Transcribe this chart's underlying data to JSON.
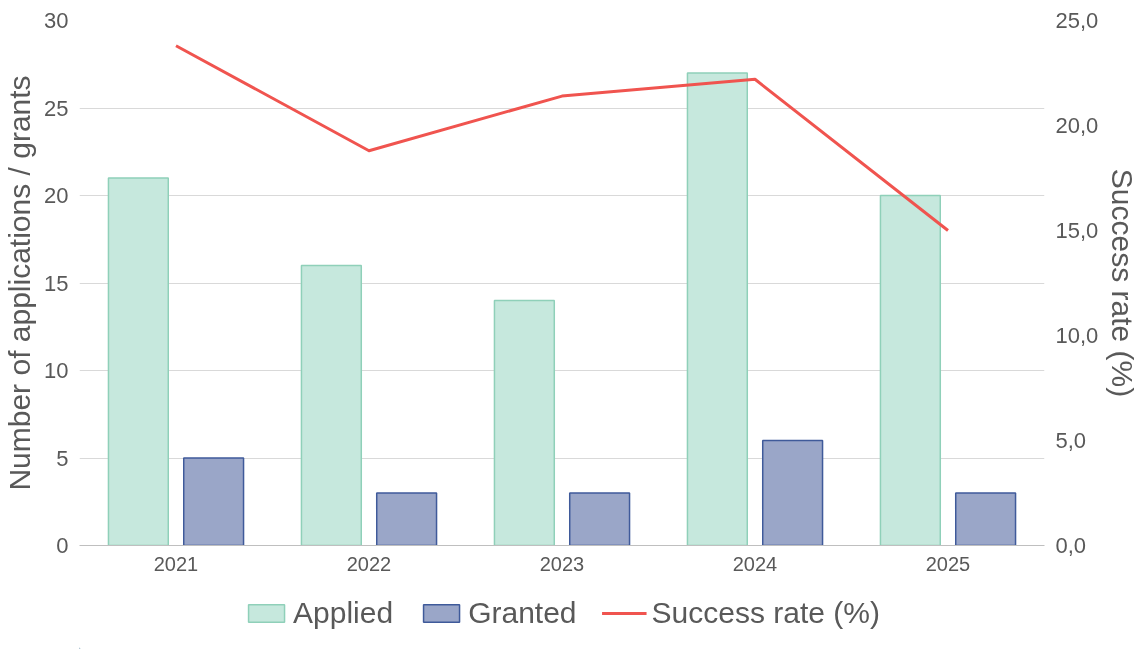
{
  "chart_data": {
    "type": "bar",
    "categories": [
      "2021",
      "2022",
      "2023",
      "2024",
      "2025"
    ],
    "ylabel": "Number of applications / grants",
    "y2label": "Success rate (%)",
    "ylim": [
      0,
      30
    ],
    "yticks": [
      0,
      5,
      10,
      15,
      20,
      25,
      30
    ],
    "y2lim": [
      0,
      25
    ],
    "y2ticks": [
      {
        "value": 0,
        "label": "0,0"
      },
      {
        "value": 5,
        "label": "5,0"
      },
      {
        "value": 10,
        "label": "10,0"
      },
      {
        "value": 15,
        "label": "15,0"
      },
      {
        "value": 20,
        "label": "20,0"
      },
      {
        "value": 25,
        "label": "25,0"
      }
    ],
    "grid": "y",
    "legend": "bottom",
    "series": [
      {
        "name": "Applied",
        "color": "#c6e8dd",
        "values": [
          21,
          16,
          14,
          27,
          20
        ]
      },
      {
        "name": "Granted",
        "color": "#9aa6c8",
        "values": [
          5,
          3,
          3,
          6,
          3
        ]
      },
      {
        "name": "Success rate (%)",
        "type": "line",
        "axis": "y2",
        "color": "#f0544f",
        "values": [
          23.8,
          18.8,
          21.4,
          22.2,
          15.0
        ]
      }
    ]
  }
}
